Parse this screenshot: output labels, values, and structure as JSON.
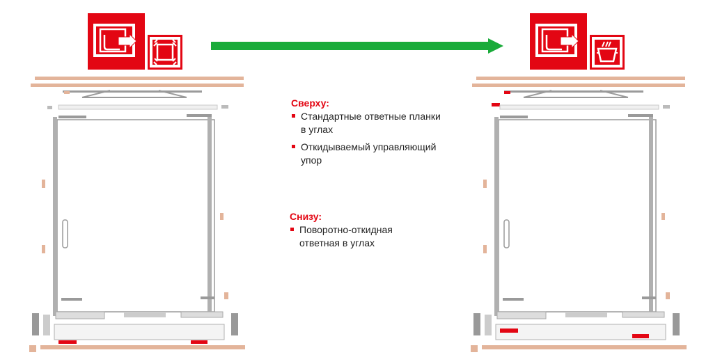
{
  "colors": {
    "accent_red": "#e30613",
    "arrow_green": "#1aab3a",
    "wood": "#e3b49a",
    "metal": "#9a9a9a"
  },
  "icons": {
    "left_main": "tilt-turn-window-icon",
    "left_small": "corner-strikers-icon",
    "right_main": "tilt-turn-window-icon",
    "right_small": "tilt-stop-icon",
    "arrow": "arrow-right-icon"
  },
  "top_section": {
    "heading": "Сверху:",
    "items": [
      "Стандартные ответные планки в углах",
      "Откидываемый управляющий упор"
    ]
  },
  "bottom_section": {
    "heading": "Снизу:",
    "items": [
      "Поворотно-откидная ответная в углах"
    ]
  }
}
